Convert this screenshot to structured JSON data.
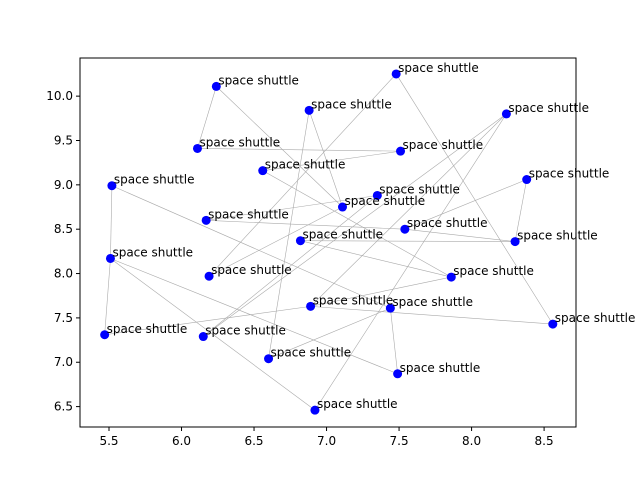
{
  "chart_data": {
    "type": "scatter",
    "title": "",
    "xlabel": "",
    "ylabel": "",
    "xlim": [
      5.3,
      8.72
    ],
    "ylim": [
      6.27,
      10.43
    ],
    "xticks": [
      "5.5",
      "6.0",
      "6.5",
      "7.0",
      "7.5",
      "8.0",
      "8.5"
    ],
    "yticks": [
      "6.5",
      "7.0",
      "7.5",
      "8.0",
      "8.5",
      "9.0",
      "9.5",
      "10.0"
    ],
    "grid": false,
    "legend": "none",
    "point_color": "#0000ff",
    "line_color": "#aaaaaa",
    "points": [
      {
        "x": 5.47,
        "y": 7.31,
        "label": "space shuttle"
      },
      {
        "x": 5.51,
        "y": 8.17,
        "label": "space shuttle"
      },
      {
        "x": 5.52,
        "y": 8.99,
        "label": "space shuttle"
      },
      {
        "x": 6.11,
        "y": 9.41,
        "label": "space shuttle"
      },
      {
        "x": 6.15,
        "y": 7.29,
        "label": "space shuttle"
      },
      {
        "x": 6.17,
        "y": 8.6,
        "label": "space shuttle"
      },
      {
        "x": 6.19,
        "y": 7.97,
        "label": "space shuttle"
      },
      {
        "x": 6.24,
        "y": 10.11,
        "label": "space shuttle"
      },
      {
        "x": 6.56,
        "y": 9.16,
        "label": "space shuttle"
      },
      {
        "x": 6.6,
        "y": 7.04,
        "label": "space shuttle"
      },
      {
        "x": 6.82,
        "y": 8.37,
        "label": "space shuttle"
      },
      {
        "x": 6.88,
        "y": 9.84,
        "label": "space shuttle"
      },
      {
        "x": 6.89,
        "y": 7.63,
        "label": "space shuttle"
      },
      {
        "x": 6.92,
        "y": 6.46,
        "label": "space shuttle"
      },
      {
        "x": 7.11,
        "y": 8.75,
        "label": "space shuttle"
      },
      {
        "x": 7.35,
        "y": 8.88,
        "label": "space shuttle"
      },
      {
        "x": 7.44,
        "y": 7.61,
        "label": "space shuttle"
      },
      {
        "x": 7.48,
        "y": 10.25,
        "label": "space shuttle"
      },
      {
        "x": 7.49,
        "y": 6.87,
        "label": "space shuttle"
      },
      {
        "x": 7.51,
        "y": 9.38,
        "label": "space shuttle"
      },
      {
        "x": 7.54,
        "y": 8.5,
        "label": "space shuttle"
      },
      {
        "x": 7.86,
        "y": 7.96,
        "label": "space shuttle"
      },
      {
        "x": 8.24,
        "y": 9.8,
        "label": "space shuttle"
      },
      {
        "x": 8.3,
        "y": 8.36,
        "label": "space shuttle"
      },
      {
        "x": 8.38,
        "y": 9.06,
        "label": "space shuttle"
      },
      {
        "x": 8.56,
        "y": 7.43,
        "label": "space shuttle"
      }
    ],
    "connections": [
      [
        17,
        25
      ],
      [
        25,
        12
      ],
      [
        12,
        22
      ],
      [
        22,
        4
      ],
      [
        4,
        15
      ],
      [
        15,
        5
      ],
      [
        5,
        20
      ],
      [
        20,
        23
      ],
      [
        23,
        10
      ],
      [
        10,
        21
      ],
      [
        21,
        8
      ],
      [
        8,
        19
      ],
      [
        19,
        3
      ],
      [
        3,
        7
      ],
      [
        7,
        14
      ],
      [
        14,
        6
      ],
      [
        6,
        17
      ],
      [
        2,
        1
      ],
      [
        1,
        0
      ],
      [
        0,
        12
      ],
      [
        12,
        21
      ],
      [
        1,
        13
      ],
      [
        13,
        22
      ],
      [
        1,
        18
      ],
      [
        18,
        16
      ],
      [
        16,
        9
      ],
      [
        9,
        11
      ],
      [
        11,
        14
      ],
      [
        2,
        16
      ],
      [
        20,
        24
      ],
      [
        24,
        23
      ]
    ]
  }
}
